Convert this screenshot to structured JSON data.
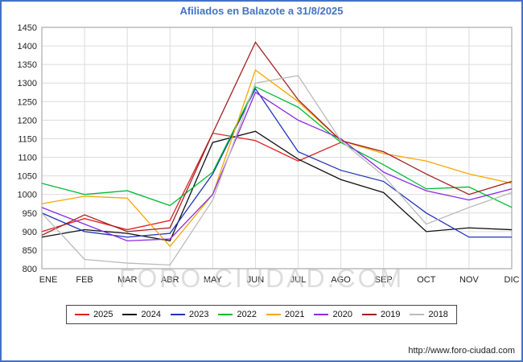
{
  "page": {
    "title": "Afiliados en Balazote a 31/8/2025",
    "watermark": "FORO-CIUDAD.COM",
    "url": "http://www.foro-ciudad.com",
    "accent_color": "#4472c4"
  },
  "chart_data": {
    "type": "line",
    "title": "Afiliados en Balazote a 31/8/2025",
    "categories": [
      "ENE",
      "FEB",
      "MAR",
      "ABR",
      "MAY",
      "JUN",
      "JUL",
      "AGO",
      "SEP",
      "OCT",
      "NOV",
      "DIC"
    ],
    "ylim": [
      800,
      1450
    ],
    "ytick_step": 50,
    "grid": true,
    "legend_position": "bottom",
    "series": [
      {
        "name": "2025",
        "color": "#e02020",
        "values": [
          900,
          935,
          905,
          930,
          1165,
          1145,
          1090,
          1140,
          null,
          null,
          null,
          null
        ]
      },
      {
        "name": "2024",
        "color": "#111111",
        "values": [
          885,
          905,
          895,
          875,
          1140,
          1170,
          1095,
          1040,
          1005,
          900,
          910,
          905
        ]
      },
      {
        "name": "2023",
        "color": "#2233bb",
        "values": [
          950,
          900,
          885,
          895,
          1055,
          1285,
          1115,
          1065,
          1035,
          950,
          885,
          885
        ]
      },
      {
        "name": "2022",
        "color": "#00bb33",
        "values": [
          1030,
          1000,
          1010,
          970,
          1060,
          1290,
          1235,
          1140,
          1080,
          1015,
          1020,
          965
        ]
      },
      {
        "name": "2021",
        "color": "#f5a800",
        "values": [
          975,
          995,
          990,
          860,
          1000,
          1335,
          1250,
          1145,
          1110,
          1090,
          1055,
          1030
        ]
      },
      {
        "name": "2020",
        "color": "#8a2be2",
        "values": [
          965,
          920,
          875,
          880,
          1000,
          1275,
          1200,
          1150,
          1060,
          1010,
          985,
          1015
        ]
      },
      {
        "name": "2019",
        "color": "#a02020",
        "values": [
          890,
          945,
          900,
          910,
          1165,
          1410,
          1255,
          1145,
          1115,
          1055,
          1000,
          1035
        ]
      },
      {
        "name": "2018",
        "color": "#bbbbbb",
        "values": [
          950,
          825,
          815,
          810,
          985,
          1300,
          1320,
          1145,
          1050,
          920,
          965,
          1005
        ]
      }
    ]
  }
}
